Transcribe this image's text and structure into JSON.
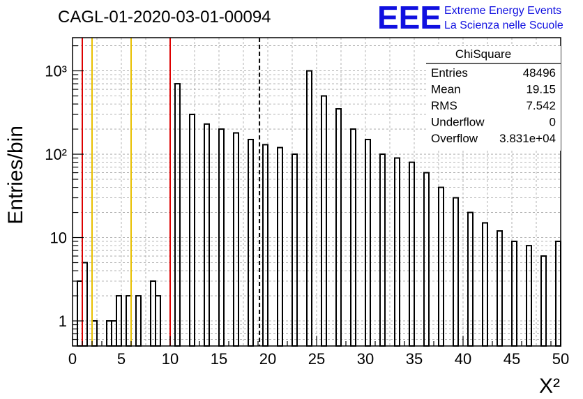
{
  "title": "CAGL-01-2020-03-01-00094",
  "logo": {
    "mark": "EEE",
    "line1": "Extreme Energy Events",
    "line2": "La Scienza nelle Scuole",
    "color": "#1010e0"
  },
  "stats": {
    "title": "ChiSquare",
    "rows": [
      {
        "label": "Entries",
        "value": "48496"
      },
      {
        "label": "Mean",
        "value": "19.15"
      },
      {
        "label": "RMS",
        "value": "7.542"
      },
      {
        "label": "Underflow",
        "value": "0"
      },
      {
        "label": "Overflow",
        "value": "3.831e+04"
      }
    ]
  },
  "chart_data": {
    "type": "bar",
    "histogram": "step",
    "xlabel": "X²",
    "ylabel": "Entries/bin",
    "xlim": [
      0,
      50
    ],
    "ylim": [
      0.5,
      2500
    ],
    "yscale": "log",
    "grid": true,
    "bin_width": 0.5,
    "x_ticks": [
      0,
      5,
      10,
      15,
      20,
      25,
      30,
      35,
      40,
      45,
      50
    ],
    "y_ticks": [
      {
        "value": 1,
        "label": "1"
      },
      {
        "value": 10,
        "label": "10"
      },
      {
        "value": 100,
        "label": "10²"
      },
      {
        "value": 1000,
        "label": "10³"
      }
    ],
    "values": [
      0,
      3,
      5,
      0,
      1,
      0,
      0,
      1,
      1,
      2,
      0,
      2,
      0,
      2,
      0,
      0,
      3,
      2,
      0,
      0,
      0,
      700,
      0,
      0,
      300,
      0,
      0,
      230,
      0,
      0,
      200,
      0,
      0,
      180,
      0,
      0,
      150,
      0,
      0,
      130,
      0,
      0,
      120,
      0,
      0,
      100,
      0,
      0,
      1000,
      0,
      0,
      500,
      0,
      0,
      350,
      0,
      0,
      200,
      0,
      0,
      150,
      0,
      0,
      100,
      0,
      0,
      90,
      0,
      0,
      80,
      0,
      0,
      60,
      0,
      0,
      40,
      0,
      0,
      30,
      0,
      0,
      20,
      0,
      0,
      15,
      0,
      0,
      12,
      0,
      0,
      9,
      0,
      0,
      8,
      0,
      0,
      6,
      0,
      0,
      9
    ],
    "vlines": [
      {
        "x": 1.0,
        "color": "#dd0000",
        "style": "solid"
      },
      {
        "x": 2.0,
        "color": "#e8c000",
        "style": "solid"
      },
      {
        "x": 6.0,
        "color": "#e8c000",
        "style": "solid"
      },
      {
        "x": 10.0,
        "color": "#dd0000",
        "style": "solid"
      },
      {
        "x": 19.15,
        "color": "#000000",
        "style": "dashed"
      }
    ]
  }
}
